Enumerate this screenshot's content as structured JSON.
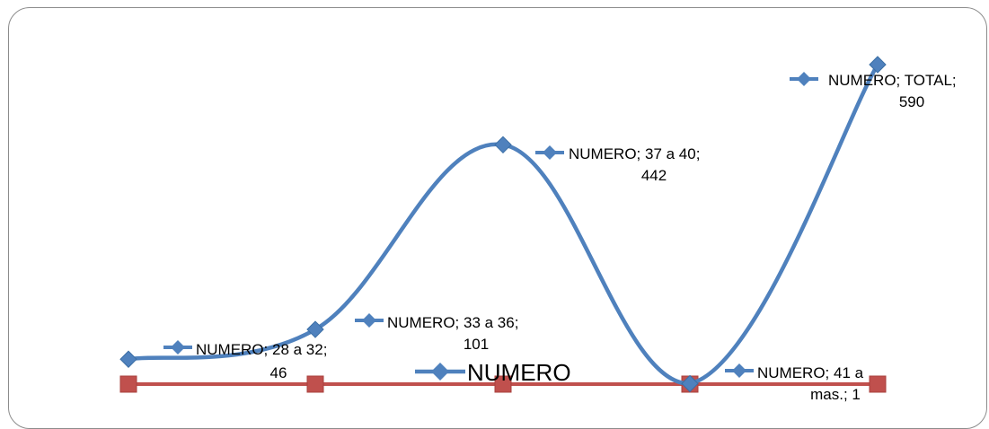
{
  "chart_data": {
    "type": "line",
    "categories": [
      "28 a 32",
      "33 a 36",
      "37 a 40",
      "41 a mas.",
      "TOTAL"
    ],
    "series": [
      {
        "name": "NUMERO",
        "color": "#4f81bd",
        "marker": "diamond",
        "smooth": true,
        "values": [
          46,
          101,
          442,
          1,
          590
        ],
        "data_labels": [
          [
            "NUMERO; 28 a 32;",
            "46"
          ],
          [
            "NUMERO; 33 a 36;",
            "101"
          ],
          [
            "NUMERO; 37 a 40;",
            "442"
          ],
          [
            "NUMERO; 41 a",
            "mas.; 1"
          ],
          [
            "NUMERO; TOTAL;",
            "590"
          ]
        ]
      },
      {
        "color": "#c0504d",
        "marker": "square",
        "values": [
          0,
          0,
          0,
          0,
          0
        ]
      }
    ],
    "legend": {
      "label": "NUMERO",
      "position": "bottom"
    },
    "title": "",
    "xlabel": "",
    "ylabel": ""
  }
}
